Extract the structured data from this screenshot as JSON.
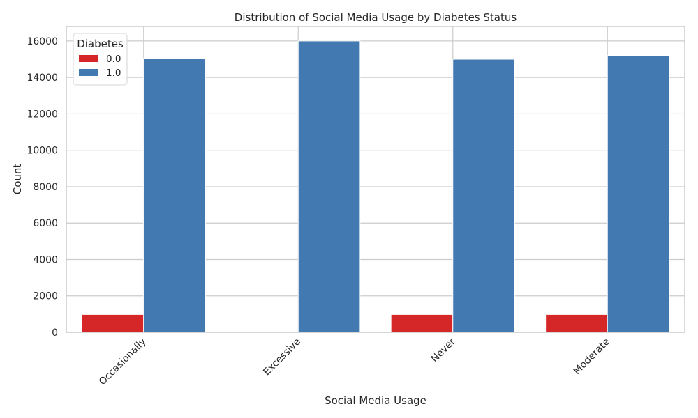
{
  "chart_data": {
    "type": "bar",
    "title": "Distribution of Social Media Usage by Diabetes Status",
    "xlabel": "Social Media Usage",
    "ylabel": "Count",
    "categories": [
      "Occasionally",
      "Excessive",
      "Never",
      "Moderate"
    ],
    "series": [
      {
        "name": "0.0",
        "color": "#d62728",
        "values": [
          980,
          0,
          980,
          980
        ]
      },
      {
        "name": "1.0",
        "color": "#4279b0",
        "values": [
          15050,
          16000,
          15000,
          15200
        ]
      }
    ],
    "ylim": [
      0,
      16800
    ],
    "yticks": [
      "0",
      "2000",
      "4000",
      "6000",
      "8000",
      "10000",
      "12000",
      "14000",
      "16000"
    ],
    "grid": true,
    "legend": {
      "title": "Diabetes",
      "placement": "top-left"
    },
    "xtick_rotation": 45
  }
}
